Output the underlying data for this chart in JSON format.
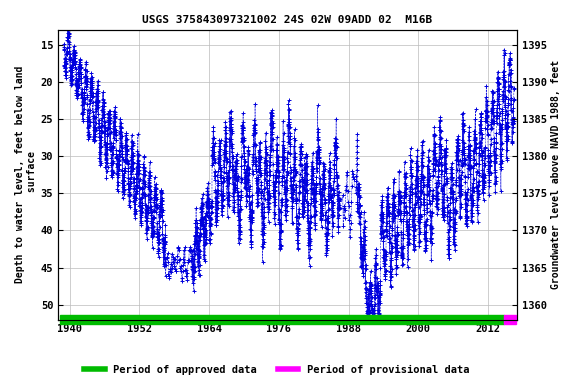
{
  "title": "USGS 375843097321002 24S 02W 09ADD 02  M16B",
  "ylabel_left": "Depth to water level, feet below land\n surface",
  "ylabel_right": "Groundwater level above NAVD 1988, feet",
  "xlim": [
    1938,
    2017
  ],
  "ylim_left": [
    52,
    13
  ],
  "ylim_right": [
    1358,
    1397
  ],
  "xticks": [
    1940,
    1952,
    1964,
    1976,
    1988,
    2000,
    2012
  ],
  "yticks_left": [
    15,
    20,
    25,
    30,
    35,
    40,
    45,
    50
  ],
  "yticks_right": [
    1360,
    1365,
    1370,
    1375,
    1380,
    1385,
    1390,
    1395
  ],
  "grid_color": "#bbbbbb",
  "data_color": "#0000dd",
  "approved_color": "#00bb00",
  "provisional_color": "#ff00ff",
  "legend_approved": "Period of approved data",
  "legend_provisional": "Period of provisional data",
  "approved_bar_xstart": 1938.3,
  "approved_bar_xend": 2014.8,
  "provisional_bar_xstart": 2014.8,
  "provisional_bar_xend": 2016.8,
  "background_color": "#ffffff",
  "font_family": "monospace"
}
